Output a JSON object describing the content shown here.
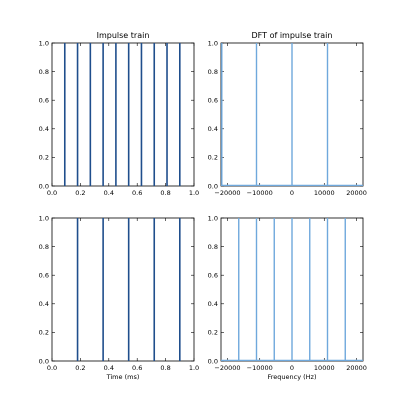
{
  "chart_data": [
    {
      "type": "bar",
      "title": "Impulse train",
      "xlabel": "",
      "ylabel": "",
      "xlim": [
        0.0,
        1.0
      ],
      "ylim": [
        0.0,
        1.0
      ],
      "xticks": [
        "0.0",
        "0.2",
        "0.4",
        "0.6",
        "0.8",
        "1.0"
      ],
      "yticks": [
        "0.0",
        "0.2",
        "0.4",
        "0.6",
        "0.8",
        "1.0"
      ],
      "color": "#1f4e8c",
      "x": [
        0.09,
        0.18,
        0.27,
        0.36,
        0.45,
        0.54,
        0.63,
        0.72,
        0.81,
        0.9
      ],
      "values": [
        1,
        1,
        1,
        1,
        1,
        1,
        1,
        1,
        1,
        1
      ]
    },
    {
      "type": "line",
      "title": "DFT of impulse train",
      "xlabel": "",
      "ylabel": "",
      "xlim": [
        -22000,
        22000
      ],
      "ylim": [
        0.0,
        1.0
      ],
      "xticks": [
        "−20000",
        "−10000",
        "0",
        "10000",
        "20000"
      ],
      "yticks": [
        "0.0",
        "0.2",
        "0.4",
        "0.6",
        "0.8",
        "1.0"
      ],
      "color": "#6fa8dc",
      "x": [
        -22000,
        -11000,
        0,
        11000
      ],
      "values": [
        1,
        1,
        1,
        1
      ]
    },
    {
      "type": "bar",
      "title": "",
      "xlabel": "Time (ms)",
      "ylabel": "",
      "xlim": [
        0.0,
        1.0
      ],
      "ylim": [
        0.0,
        1.0
      ],
      "xticks": [
        "0.0",
        "0.2",
        "0.4",
        "0.6",
        "0.8",
        "1.0"
      ],
      "yticks": [
        "0.0",
        "0.2",
        "0.4",
        "0.6",
        "0.8",
        "1.0"
      ],
      "color": "#1f4e8c",
      "x": [
        0.18,
        0.36,
        0.54,
        0.72,
        0.9
      ],
      "values": [
        1,
        1,
        1,
        1,
        1
      ]
    },
    {
      "type": "line",
      "title": "",
      "xlabel": "Frequency (Hz)",
      "ylabel": "",
      "xlim": [
        -22000,
        22000
      ],
      "ylim": [
        0.0,
        1.0
      ],
      "xticks": [
        "−20000",
        "−10000",
        "0",
        "10000",
        "20000"
      ],
      "yticks": [
        "0.0",
        "0.2",
        "0.4",
        "0.6",
        "0.8",
        "1.0"
      ],
      "color": "#6fa8dc",
      "x": [
        -16500,
        -11000,
        -5500,
        0,
        5500,
        11000,
        16500
      ],
      "values": [
        1,
        1,
        1,
        1,
        1,
        1,
        1
      ]
    }
  ]
}
